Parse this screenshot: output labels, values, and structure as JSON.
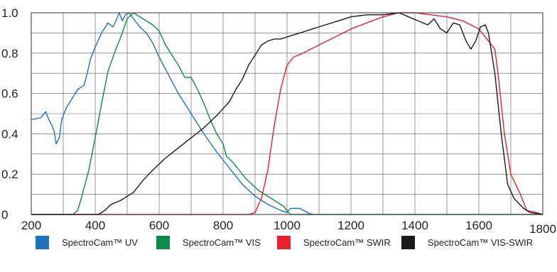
{
  "chart_data": {
    "type": "line",
    "title": "",
    "xlabel": "",
    "ylabel": "",
    "xlim": [
      200,
      1800
    ],
    "ylim": [
      0,
      1.0
    ],
    "x_ticks": [
      "200",
      "400",
      "600",
      "800",
      "1000",
      "1200",
      "1400",
      "1600",
      "1800"
    ],
    "y_ticks": [
      "0",
      "0.2",
      "0.4",
      "0.6",
      "0.8",
      "1.0"
    ],
    "grid": true,
    "legend_position": "bottom",
    "series": [
      {
        "name": "SpectroCam™ UV",
        "color": "#1f72bd",
        "points": [
          [
            200,
            0.47
          ],
          [
            230,
            0.48
          ],
          [
            245,
            0.51
          ],
          [
            255,
            0.47
          ],
          [
            265,
            0.44
          ],
          [
            272,
            0.41
          ],
          [
            278,
            0.35
          ],
          [
            288,
            0.38
          ],
          [
            295,
            0.47
          ],
          [
            310,
            0.53
          ],
          [
            330,
            0.58
          ],
          [
            345,
            0.62
          ],
          [
            365,
            0.64
          ],
          [
            375,
            0.7
          ],
          [
            385,
            0.77
          ],
          [
            400,
            0.83
          ],
          [
            420,
            0.9
          ],
          [
            440,
            0.95
          ],
          [
            455,
            0.93
          ],
          [
            465,
            0.96
          ],
          [
            475,
            1.0
          ],
          [
            485,
            0.96
          ],
          [
            495,
            0.99
          ],
          [
            505,
            1.0
          ],
          [
            520,
            0.97
          ],
          [
            540,
            0.93
          ],
          [
            560,
            0.9
          ],
          [
            580,
            0.85
          ],
          [
            600,
            0.78
          ],
          [
            620,
            0.72
          ],
          [
            640,
            0.66
          ],
          [
            660,
            0.6
          ],
          [
            680,
            0.55
          ],
          [
            700,
            0.5
          ],
          [
            740,
            0.4
          ],
          [
            780,
            0.31
          ],
          [
            820,
            0.23
          ],
          [
            860,
            0.15
          ],
          [
            900,
            0.09
          ],
          [
            940,
            0.05
          ],
          [
            980,
            0.02
          ],
          [
            1000,
            0.01
          ],
          [
            1010,
            0.03
          ],
          [
            1040,
            0.03
          ],
          [
            1070,
            0.005
          ],
          [
            1080,
            0.0
          ]
        ]
      },
      {
        "name": "SpectroCam™ VIS",
        "color": "#0c8a48",
        "points": [
          [
            200,
            0.0
          ],
          [
            330,
            0.0
          ],
          [
            345,
            0.02
          ],
          [
            360,
            0.1
          ],
          [
            380,
            0.22
          ],
          [
            400,
            0.38
          ],
          [
            420,
            0.55
          ],
          [
            440,
            0.71
          ],
          [
            460,
            0.8
          ],
          [
            480,
            0.88
          ],
          [
            500,
            0.97
          ],
          [
            520,
            1.0
          ],
          [
            540,
            0.98
          ],
          [
            560,
            0.96
          ],
          [
            580,
            0.94
          ],
          [
            600,
            0.91
          ],
          [
            620,
            0.84
          ],
          [
            640,
            0.79
          ],
          [
            660,
            0.74
          ],
          [
            680,
            0.68
          ],
          [
            700,
            0.68
          ],
          [
            720,
            0.62
          ],
          [
            740,
            0.55
          ],
          [
            760,
            0.47
          ],
          [
            780,
            0.4
          ],
          [
            800,
            0.35
          ],
          [
            810,
            0.29
          ],
          [
            830,
            0.26
          ],
          [
            850,
            0.22
          ],
          [
            870,
            0.18
          ],
          [
            890,
            0.15
          ],
          [
            910,
            0.12
          ],
          [
            930,
            0.1
          ],
          [
            950,
            0.08
          ],
          [
            970,
            0.06
          ],
          [
            990,
            0.04
          ],
          [
            1010,
            0.0
          ],
          [
            1800,
            0.0
          ]
        ]
      },
      {
        "name": "SpectroCam™ SWIR",
        "color": "#e8202e",
        "points": [
          [
            200,
            0.0
          ],
          [
            880,
            0.0
          ],
          [
            900,
            0.01
          ],
          [
            920,
            0.08
          ],
          [
            940,
            0.22
          ],
          [
            960,
            0.44
          ],
          [
            980,
            0.62
          ],
          [
            1000,
            0.74
          ],
          [
            1020,
            0.78
          ],
          [
            1050,
            0.8
          ],
          [
            1100,
            0.84
          ],
          [
            1150,
            0.88
          ],
          [
            1200,
            0.92
          ],
          [
            1250,
            0.95
          ],
          [
            1300,
            0.98
          ],
          [
            1350,
            1.0
          ],
          [
            1400,
            1.0
          ],
          [
            1450,
            0.99
          ],
          [
            1500,
            0.98
          ],
          [
            1550,
            0.96
          ],
          [
            1600,
            0.92
          ],
          [
            1650,
            0.82
          ],
          [
            1660,
            0.7
          ],
          [
            1680,
            0.4
          ],
          [
            1700,
            0.2
          ],
          [
            1730,
            0.1
          ],
          [
            1750,
            0.02
          ],
          [
            1780,
            0.01
          ],
          [
            1800,
            0.0
          ]
        ]
      },
      {
        "name": "SpectroCam™ VIS-SWIR",
        "color": "#1a1a1a",
        "points": [
          [
            200,
            0.0
          ],
          [
            410,
            0.0
          ],
          [
            430,
            0.02
          ],
          [
            450,
            0.05
          ],
          [
            480,
            0.07
          ],
          [
            520,
            0.11
          ],
          [
            550,
            0.17
          ],
          [
            580,
            0.22
          ],
          [
            620,
            0.28
          ],
          [
            660,
            0.33
          ],
          [
            700,
            0.38
          ],
          [
            740,
            0.43
          ],
          [
            780,
            0.49
          ],
          [
            820,
            0.56
          ],
          [
            840,
            0.62
          ],
          [
            860,
            0.67
          ],
          [
            880,
            0.74
          ],
          [
            900,
            0.79
          ],
          [
            920,
            0.84
          ],
          [
            940,
            0.86
          ],
          [
            960,
            0.87
          ],
          [
            980,
            0.87
          ],
          [
            1000,
            0.88
          ],
          [
            1040,
            0.9
          ],
          [
            1080,
            0.92
          ],
          [
            1120,
            0.94
          ],
          [
            1160,
            0.96
          ],
          [
            1200,
            0.98
          ],
          [
            1250,
            0.99
          ],
          [
            1300,
            0.99
          ],
          [
            1350,
            1.0
          ],
          [
            1380,
            0.98
          ],
          [
            1410,
            0.96
          ],
          [
            1440,
            0.94
          ],
          [
            1460,
            0.97
          ],
          [
            1480,
            0.92
          ],
          [
            1500,
            0.9
          ],
          [
            1520,
            0.95
          ],
          [
            1540,
            0.94
          ],
          [
            1560,
            0.86
          ],
          [
            1575,
            0.82
          ],
          [
            1590,
            0.86
          ],
          [
            1605,
            0.93
          ],
          [
            1620,
            0.94
          ],
          [
            1630,
            0.9
          ],
          [
            1650,
            0.7
          ],
          [
            1670,
            0.4
          ],
          [
            1690,
            0.15
          ],
          [
            1710,
            0.08
          ],
          [
            1740,
            0.03
          ],
          [
            1760,
            0.01
          ],
          [
            1800,
            0.0
          ]
        ]
      }
    ]
  }
}
